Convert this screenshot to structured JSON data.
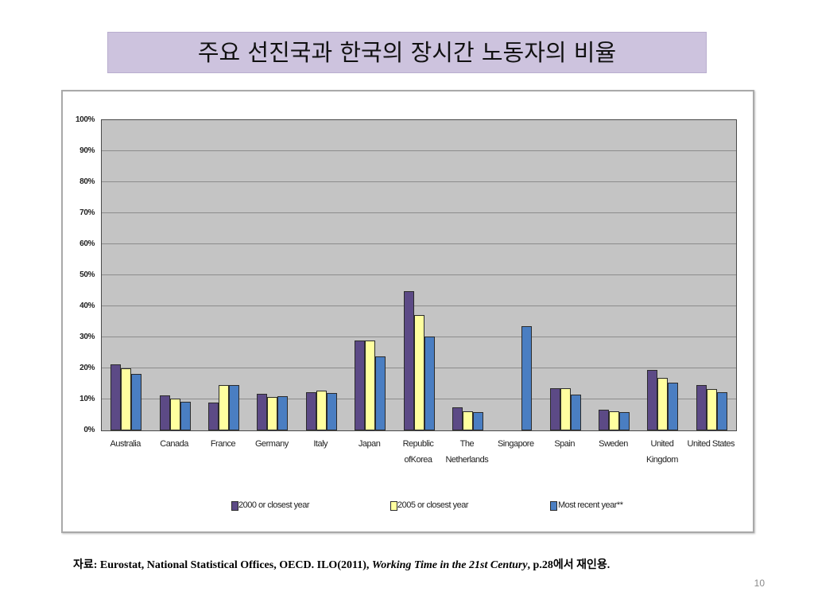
{
  "slide": {
    "title": "주요 선진국과 한국의 장시간 노동자의 비율",
    "source": {
      "prefix": "자료: Eurostat, National Statistical Offices, OECD. ILO(2011), ",
      "italic": "Working Time in the 21st Century",
      "suffix": ", p.28에서 재인용."
    },
    "page_number": "10"
  },
  "chart_data": {
    "type": "bar",
    "categories": [
      "Australia",
      "Canada",
      "France",
      "Germany",
      "Italy",
      "Japan",
      "Republic\nofKorea",
      "The\nNetherlands",
      "Singapore",
      "Spain",
      "Sweden",
      "United\nKingdom",
      "United States"
    ],
    "series": [
      {
        "name": "2000 or closest year",
        "color": "#5c4a86",
        "values": [
          21.2,
          11.3,
          9.1,
          11.7,
          12.2,
          28.9,
          44.9,
          7.4,
          null,
          13.5,
          6.6,
          19.6,
          14.5
        ]
      },
      {
        "name": "2005 or closest year",
        "color": "#ffff9f",
        "values": [
          19.9,
          10.3,
          14.6,
          10.9,
          12.7,
          28.9,
          37.3,
          6.2,
          null,
          13.5,
          6.2,
          16.9,
          13.3
        ]
      },
      {
        "name": "Most recent year**",
        "color": "#4a7ec2",
        "values": [
          18.3,
          9.2,
          14.6,
          11.0,
          12.1,
          23.8,
          30.3,
          5.9,
          33.7,
          11.6,
          5.9,
          15.5,
          12.2
        ]
      }
    ],
    "y_tick_labels": [
      "0%",
      "10%",
      "20%",
      "30%",
      "40%",
      "50%",
      "60%",
      "70%",
      "80%",
      "90%",
      "100%"
    ],
    "ylim": [
      0,
      100
    ],
    "grid": true,
    "legend_position": "bottom",
    "plot_background": "#c4c4c4"
  }
}
